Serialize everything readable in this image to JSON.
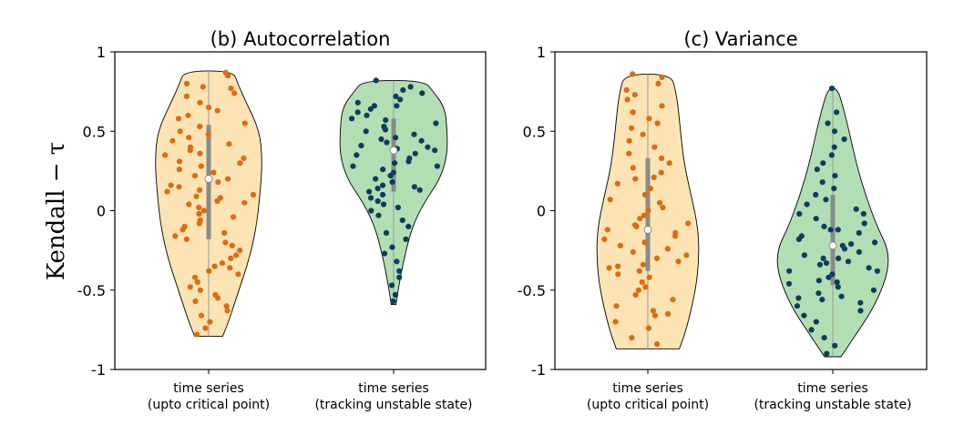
{
  "ylabel": "Kendall − τ",
  "chart_data": [
    {
      "type": "violin",
      "title": "(b) Autocorrelation",
      "ylim": [
        -1,
        1
      ],
      "yticks": [
        "1",
        "0.5",
        "0",
        "-0.5",
        "-1"
      ],
      "categories": [
        "time series\n(upto critical point)",
        "time series\n(tracking  unstable state)"
      ],
      "series": [
        {
          "color": "#fce4b4",
          "point_color": "#e06a10",
          "min": -0.79,
          "max": 0.88,
          "median": 0.2,
          "q1": -0.18,
          "q3": 0.54,
          "profile": [
            [
              -0.79,
              0.12
            ],
            [
              -0.7,
              0.17
            ],
            [
              -0.5,
              0.26
            ],
            [
              -0.3,
              0.35
            ],
            [
              -0.1,
              0.41
            ],
            [
              0.1,
              0.44
            ],
            [
              0.3,
              0.46
            ],
            [
              0.5,
              0.44
            ],
            [
              0.7,
              0.31
            ],
            [
              0.8,
              0.25
            ],
            [
              0.88,
              0.21
            ]
          ],
          "points": [
            0.87,
            0.85,
            0.8,
            0.78,
            0.77,
            0.72,
            0.68,
            0.65,
            0.63,
            0.6,
            0.58,
            0.55,
            0.53,
            0.5,
            0.48,
            0.46,
            0.44,
            0.42,
            0.4,
            0.38,
            0.35,
            0.33,
            0.31,
            0.3,
            0.28,
            0.26,
            0.24,
            0.22,
            0.2,
            0.18,
            0.16,
            0.15,
            0.13,
            0.12,
            0.1,
            0.09,
            0.08,
            0.06,
            0.05,
            0.04,
            0.02,
            0.0,
            -0.02,
            -0.04,
            -0.06,
            -0.08,
            -0.1,
            -0.12,
            -0.14,
            -0.16,
            -0.18,
            -0.2,
            -0.22,
            -0.25,
            -0.28,
            -0.3,
            -0.33,
            -0.35,
            -0.38,
            -0.4,
            -0.42,
            -0.45,
            -0.48,
            -0.5,
            -0.53,
            -0.55,
            -0.57,
            -0.6,
            -0.63,
            -0.66,
            -0.7,
            -0.74,
            -0.78,
            0.74,
            0.36,
            -0.36
          ]
        },
        {
          "color": "#b3deb4",
          "point_color": "#0d3d5e",
          "min": -0.59,
          "max": 0.82,
          "median": 0.38,
          "q1": 0.12,
          "q3": 0.58,
          "profile": [
            [
              -0.59,
              0.02
            ],
            [
              -0.45,
              0.05
            ],
            [
              -0.3,
              0.09
            ],
            [
              -0.1,
              0.16
            ],
            [
              0.05,
              0.26
            ],
            [
              0.2,
              0.4
            ],
            [
              0.35,
              0.46
            ],
            [
              0.5,
              0.46
            ],
            [
              0.65,
              0.44
            ],
            [
              0.75,
              0.34
            ],
            [
              0.82,
              0.26
            ]
          ],
          "points": [
            0.82,
            0.78,
            0.76,
            0.74,
            0.72,
            0.7,
            0.68,
            0.66,
            0.64,
            0.62,
            0.6,
            0.58,
            0.57,
            0.55,
            0.53,
            0.51,
            0.5,
            0.48,
            0.46,
            0.45,
            0.43,
            0.41,
            0.4,
            0.38,
            0.36,
            0.35,
            0.33,
            0.31,
            0.3,
            0.28,
            0.26,
            0.24,
            0.22,
            0.2,
            0.18,
            0.16,
            0.15,
            0.13,
            0.12,
            0.1,
            0.08,
            0.06,
            0.04,
            0.02,
            0.0,
            -0.03,
            -0.06,
            -0.1,
            -0.14,
            -0.18,
            -0.23,
            -0.27,
            -0.32,
            -0.38,
            -0.42,
            -0.47,
            -0.53,
            -0.57,
            0.66,
            0.52,
            0.44,
            0.28,
            0.14,
            0.39
          ]
        }
      ]
    },
    {
      "type": "violin",
      "title": "(c) Variance",
      "ylim": [
        -1,
        1
      ],
      "yticks": [
        "1",
        "0.5",
        "0",
        "-0.5",
        "-1"
      ],
      "categories": [
        "time series\n(upto critical point)",
        "time series\n(tracking  unstable state)"
      ],
      "series": [
        {
          "color": "#fce4b4",
          "point_color": "#e06a10",
          "min": -0.87,
          "max": 0.86,
          "median": -0.12,
          "q1": -0.38,
          "q3": 0.33,
          "profile": [
            [
              -0.87,
              0.27
            ],
            [
              -0.75,
              0.33
            ],
            [
              -0.5,
              0.41
            ],
            [
              -0.3,
              0.44
            ],
            [
              -0.1,
              0.43
            ],
            [
              0.1,
              0.37
            ],
            [
              0.3,
              0.31
            ],
            [
              0.5,
              0.28
            ],
            [
              0.65,
              0.26
            ],
            [
              0.75,
              0.24
            ],
            [
              0.86,
              0.2
            ]
          ],
          "points": [
            0.86,
            0.84,
            0.8,
            0.76,
            0.73,
            0.7,
            0.66,
            0.62,
            0.58,
            0.55,
            0.52,
            0.48,
            0.44,
            0.4,
            0.36,
            0.33,
            0.3,
            0.27,
            0.24,
            0.2,
            0.17,
            0.14,
            0.1,
            0.07,
            0.05,
            0.02,
            0.0,
            -0.03,
            -0.05,
            -0.08,
            -0.1,
            -0.12,
            -0.14,
            -0.16,
            -0.18,
            -0.2,
            -0.22,
            -0.24,
            -0.26,
            -0.28,
            -0.3,
            -0.32,
            -0.34,
            -0.36,
            -0.38,
            -0.4,
            -0.42,
            -0.45,
            -0.48,
            -0.5,
            -0.53,
            -0.56,
            -0.6,
            -0.63,
            -0.66,
            -0.7,
            -0.74,
            -0.8,
            -0.84,
            0.21,
            -0.35,
            -0.09,
            0.62,
            -0.65
          ]
        },
        {
          "color": "#b3deb4",
          "point_color": "#0d3d5e",
          "min": -0.92,
          "max": 0.77,
          "median": -0.22,
          "q1": -0.47,
          "q3": 0.1,
          "profile": [
            [
              -0.92,
              0.07
            ],
            [
              -0.8,
              0.18
            ],
            [
              -0.6,
              0.36
            ],
            [
              -0.4,
              0.47
            ],
            [
              -0.25,
              0.48
            ],
            [
              -0.1,
              0.38
            ],
            [
              0.1,
              0.28
            ],
            [
              0.3,
              0.2
            ],
            [
              0.5,
              0.14
            ],
            [
              0.65,
              0.09
            ],
            [
              0.77,
              0.04
            ]
          ],
          "points": [
            0.77,
            0.62,
            0.55,
            0.5,
            0.45,
            0.4,
            0.35,
            0.3,
            0.26,
            0.22,
            0.18,
            0.14,
            0.1,
            0.07,
            0.04,
            0.01,
            -0.02,
            -0.05,
            -0.08,
            -0.1,
            -0.12,
            -0.14,
            -0.16,
            -0.18,
            -0.2,
            -0.22,
            -0.24,
            -0.26,
            -0.28,
            -0.3,
            -0.32,
            -0.34,
            -0.36,
            -0.38,
            -0.4,
            -0.42,
            -0.44,
            -0.46,
            -0.48,
            -0.5,
            -0.52,
            -0.54,
            -0.56,
            -0.58,
            -0.6,
            -0.63,
            -0.66,
            -0.7,
            -0.75,
            -0.8,
            -0.85,
            -0.9,
            -0.38,
            -0.3,
            -0.21,
            -0.45,
            -0.12,
            -0.55,
            -0.33,
            -0.02
          ]
        }
      ]
    }
  ]
}
